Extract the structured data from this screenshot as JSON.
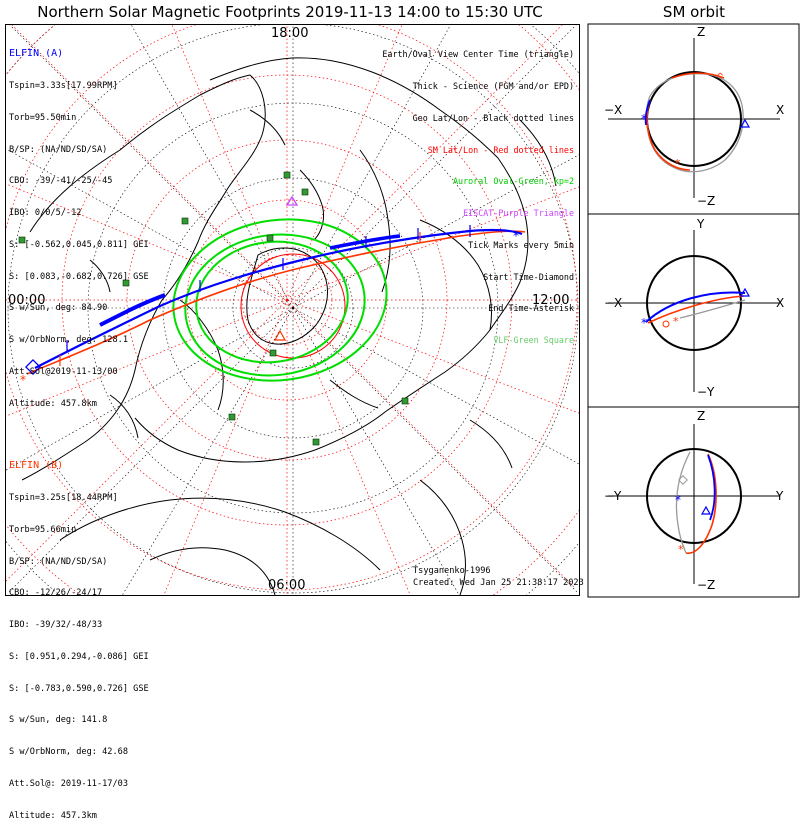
{
  "title": "Northern Solar Magnetic Footprints 2019-11-13 14:00 to 15:30 UTC",
  "sm_title": "SM orbit",
  "elfin_a": {
    "name": "ELFIN (A)",
    "color": "#0000ff",
    "lines": [
      "Tspin=3.33s[17.99RPM]",
      "Torb=95.50min",
      "B/SP: (NA/ND/SD/SA)",
      "CBO: -39/-41/-25/-45",
      "IBO: 0/0/5/-12",
      "S: [-0.562,0.045,0.811] GEI",
      "S: [0.083,-0.682,0.726] GSE",
      "S w/Sun, deg: 84.90",
      "S w/OrbNorm, deg: 128.1",
      "Att.Sol@2019-11-13/00",
      "Altitude: 457.8km"
    ]
  },
  "elfin_b": {
    "name": "ELFIN (B)",
    "color": "#ff3300",
    "lines": [
      "Tspin=3.25s[18.44RPM]",
      "Torb=95.66min",
      "B/SP: (NA/ND/SD/SA)",
      "CBO: -12/26/-24/17",
      "IBO: -39/32/-48/33",
      "S: [0.951,0.294,-0.086] GEI",
      "S: [-0.783,0.590,0.726] GSE",
      "S w/Sun, deg: 141.8",
      "S w/OrbNorm, deg: 42.68",
      "Att.Sol@: 2019-11-17/03",
      "Altitude: 457.3km"
    ]
  },
  "legend": [
    {
      "text": "Earth/Oval View Center Time (triangle)",
      "color": "#000000"
    },
    {
      "text": "Thick - Science (FGM and/or EPD)",
      "color": "#000000"
    },
    {
      "text": "Geo Lat/Lon - Black dotted lines",
      "color": "#000000"
    },
    {
      "text": "SM Lat/Lon - Red dotted lines",
      "color": "#ff0000"
    },
    {
      "text": "Auroral Oval-Green, kp=2",
      "color": "#00cc00"
    },
    {
      "text": "EISCAT-Purple Triangle",
      "color": "#cc44ff"
    },
    {
      "text": "Tick Marks every 5min",
      "color": "#000000"
    },
    {
      "text": "Start Time-Diamond",
      "color": "#000000"
    },
    {
      "text": "End Time-Asterisk",
      "color": "#000000"
    },
    {
      "text": "VLF-Green Square",
      "color": "#66cc66"
    }
  ],
  "mlt_labels": {
    "top": "18:00",
    "left": "00:00",
    "right": "12:00",
    "bottom": "06:00"
  },
  "footer": {
    "model": "Tsyganenko-1996",
    "created": "Created: Wed Jan 25 21:38:17 2023"
  },
  "panels": [
    {
      "top": "Z",
      "bottom": "−Z",
      "left": "−X",
      "right": "X"
    },
    {
      "top": "Y",
      "bottom": "−Y",
      "left": "−X",
      "right": "X"
    },
    {
      "top": "Z",
      "bottom": "−Z",
      "left": "−Y",
      "right": "Y"
    }
  ]
}
